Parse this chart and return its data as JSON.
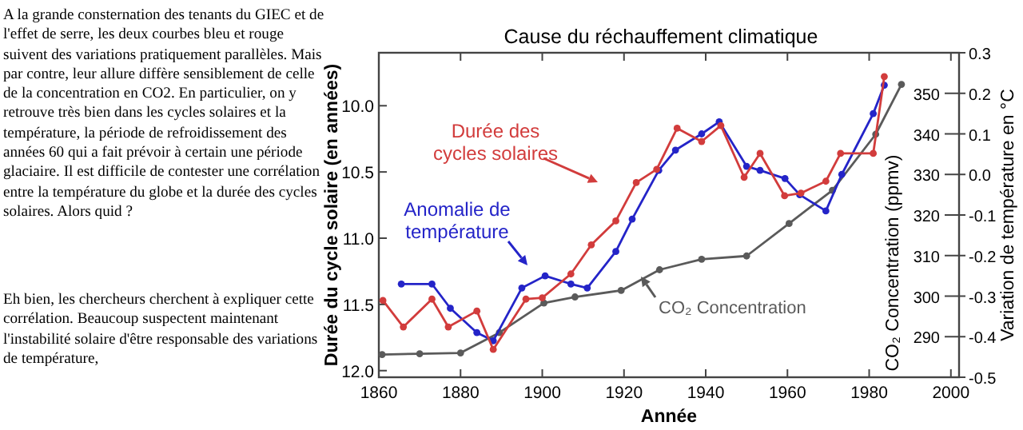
{
  "chart_data": {
    "type": "line",
    "title": "Cause du réchauffement climatique",
    "xlabel": "Année",
    "ylabel": "Durée du cycle solaire (en années)",
    "y2label": "CO₂ Concentration (ppmv)",
    "y3label": "Variation de température en °C",
    "xlim": [
      1860,
      2002
    ],
    "xticks": [
      1860,
      1880,
      1900,
      1920,
      1940,
      1960,
      1980,
      2000
    ],
    "ylim": [
      12.05,
      9.6
    ],
    "yticks": [
      {
        "value": 10,
        "label": "10.0"
      },
      10.5,
      {
        "value": 11,
        "label": "11.0"
      },
      11.5,
      {
        "value": 12,
        "label": "12.0"
      }
    ],
    "y2lim": [
      280,
      360
    ],
    "y2ticks": [
      290,
      300,
      310,
      320,
      330,
      340,
      350
    ],
    "y3lim": [
      -0.5,
      0.3
    ],
    "y3ticks": [
      -0.5,
      -0.4,
      -0.3,
      -0.2,
      -0.1,
      {
        "value": 0,
        "label": "0.0"
      },
      0.1,
      0.2,
      0.3
    ],
    "marker": "circle",
    "line_style": "solid",
    "series": [
      {
        "name": "Durée des cycles solaires",
        "color": "#d23c3c",
        "axis": "y",
        "x": [
          1861,
          1866,
          1873,
          1877,
          1884,
          1888,
          1896,
          1900,
          1907,
          1912,
          1918,
          1923,
          1928,
          1933,
          1939,
          1943.7,
          1949.4,
          1953.3,
          1959.3,
          1963.3,
          1969.4,
          1973,
          1981,
          1983.7
        ],
        "values": [
          11.47,
          11.67,
          11.46,
          11.67,
          11.55,
          11.84,
          11.46,
          11.45,
          11.27,
          11.05,
          10.87,
          10.58,
          10.48,
          10.17,
          10.27,
          10.15,
          10.54,
          10.36,
          10.68,
          10.66,
          10.57,
          10.36,
          10.36,
          9.78
        ]
      },
      {
        "name": "Anomalie de température",
        "color": "#2424c8",
        "axis": "y3",
        "x": [
          1865.5,
          1873,
          1877.5,
          1884,
          1888,
          1895,
          1900.7,
          1907,
          1911,
          1918,
          1922,
          1928.5,
          1932.6,
          1939,
          1943.3,
          1950,
          1953.3,
          1959.4,
          1963,
          1969.4,
          1973.3,
          1981,
          1983.7
        ],
        "values": [
          -0.27,
          -0.27,
          -0.33,
          -0.39,
          -0.41,
          -0.28,
          -0.25,
          -0.27,
          -0.28,
          -0.19,
          -0.11,
          0.01,
          0.06,
          0.1,
          0.13,
          0.02,
          0.01,
          -0.01,
          -0.05,
          -0.09,
          0,
          0.15,
          0.22
        ]
      },
      {
        "name": "CO₂ Concentration",
        "color": "#5a5a5a",
        "axis": "y2",
        "x": [
          1860.8,
          1870,
          1880,
          1889.5,
          1900.4,
          1908,
          1919.3,
          1928.7,
          1939,
          1950,
          1960.4,
          1971,
          1981.6,
          1987.9
        ],
        "values": [
          285.6,
          285.8,
          286,
          291,
          298.3,
          299.8,
          301.4,
          306.5,
          309.1,
          309.9,
          317.9,
          326.1,
          339.9,
          352.2
        ]
      }
    ],
    "annotations": [
      "A la grande consternation des tenants du GIEC et de l'effet de serre, les deux courbes bleu et rouge suivent des variations pratiquement parallèles. Mais par contre, leur allure diffère sensiblement de celle de la concentration en CO2. En particulier, on y retrouve très bien dans les cycles solaires et la température, la période de refroidissement des années 60 qui a fait prévoir à certain une période glaciaire. Il est difficile de contester une corrélation entre la température du globe et la durée des cycles solaires. Alors quid ?",
      "Eh bien, les chercheurs cherchent à expliquer cette corrélation. Beaucoup suspectent maintenant l'instabilité solaire d'être responsable des variations de température,"
    ]
  }
}
